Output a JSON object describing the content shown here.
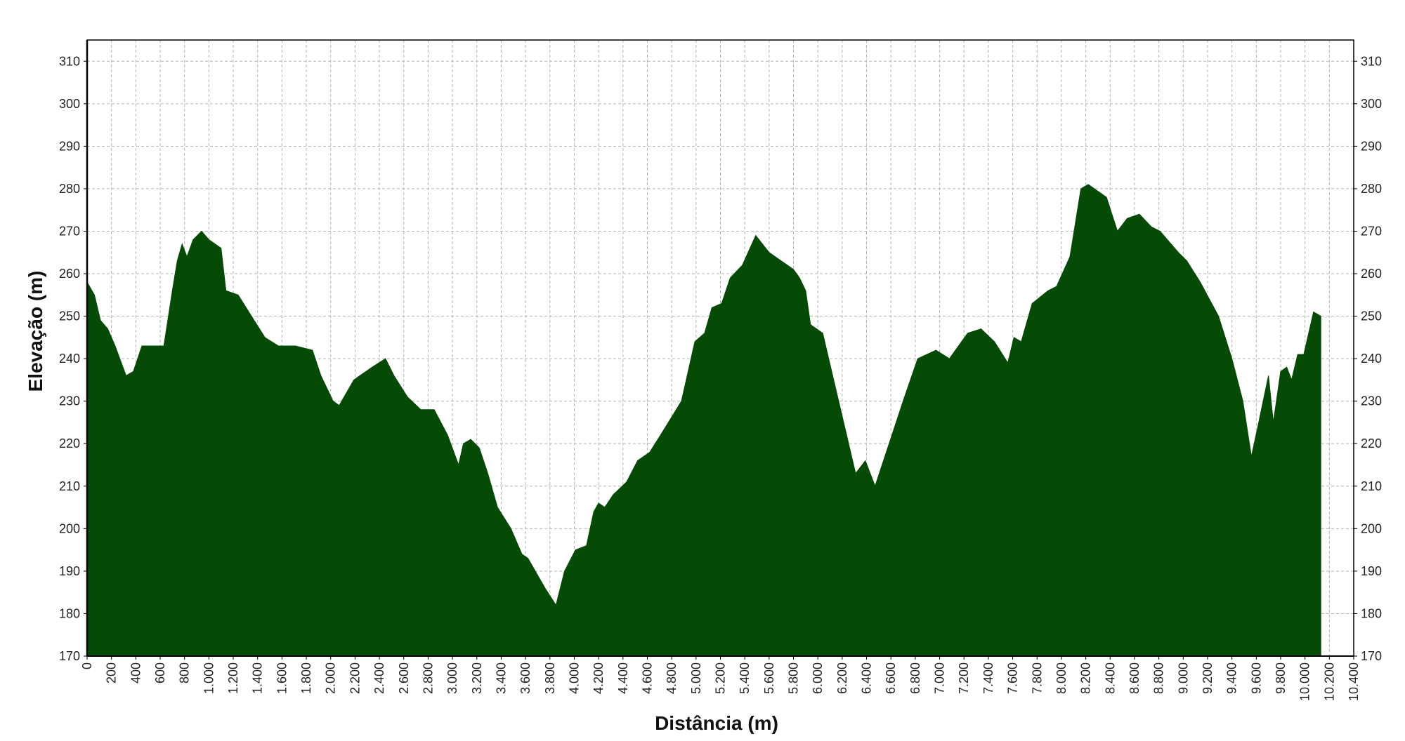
{
  "chart_data": {
    "type": "area",
    "x_label": "Distância (m)",
    "y_label": "Elevação (m)",
    "color": "#054a05",
    "grid": true,
    "xlim": [
      0,
      10400
    ],
    "ylim": [
      170,
      315
    ],
    "xticks": [
      0,
      200,
      400,
      600,
      800,
      {
        "value": 1000,
        "label": "1.000"
      },
      {
        "value": 1200,
        "label": "1.200"
      },
      {
        "value": 1400,
        "label": "1.400"
      },
      {
        "value": 1600,
        "label": "1.600"
      },
      {
        "value": 1800,
        "label": "1.800"
      },
      {
        "value": 2000,
        "label": "2.000"
      },
      {
        "value": 2200,
        "label": "2.200"
      },
      {
        "value": 2400,
        "label": "2.400"
      },
      {
        "value": 2600,
        "label": "2.600"
      },
      {
        "value": 2800,
        "label": "2.800"
      },
      {
        "value": 3000,
        "label": "3.000"
      },
      {
        "value": 3200,
        "label": "3.200"
      },
      {
        "value": 3400,
        "label": "3.400"
      },
      {
        "value": 3600,
        "label": "3.600"
      },
      {
        "value": 3800,
        "label": "3.800"
      },
      {
        "value": 4000,
        "label": "4.000"
      },
      {
        "value": 4200,
        "label": "4.200"
      },
      {
        "value": 4400,
        "label": "4.400"
      },
      {
        "value": 4600,
        "label": "4.600"
      },
      {
        "value": 4800,
        "label": "4.800"
      },
      {
        "value": 5000,
        "label": "5.000"
      },
      {
        "value": 5200,
        "label": "5.200"
      },
      {
        "value": 5400,
        "label": "5.400"
      },
      {
        "value": 5600,
        "label": "5.600"
      },
      {
        "value": 5800,
        "label": "5.800"
      },
      {
        "value": 6000,
        "label": "6.000"
      },
      {
        "value": 6200,
        "label": "6.200"
      },
      {
        "value": 6400,
        "label": "6.400"
      },
      {
        "value": 6600,
        "label": "6.600"
      },
      {
        "value": 6800,
        "label": "6.800"
      },
      {
        "value": 7000,
        "label": "7.000"
      },
      {
        "value": 7200,
        "label": "7.200"
      },
      {
        "value": 7400,
        "label": "7.400"
      },
      {
        "value": 7600,
        "label": "7.600"
      },
      {
        "value": 7800,
        "label": "7.800"
      },
      {
        "value": 8000,
        "label": "8.000"
      },
      {
        "value": 8200,
        "label": "8.200"
      },
      {
        "value": 8400,
        "label": "8.400"
      },
      {
        "value": 8600,
        "label": "8.600"
      },
      {
        "value": 8800,
        "label": "8.800"
      },
      {
        "value": 9000,
        "label": "9.000"
      },
      {
        "value": 9200,
        "label": "9.200"
      },
      {
        "value": 9400,
        "label": "9.400"
      },
      {
        "value": 9600,
        "label": "9.600"
      },
      {
        "value": 9800,
        "label": "9.800"
      },
      {
        "value": 10000,
        "label": "10.000"
      },
      {
        "value": 10200,
        "label": "10.200"
      },
      {
        "value": 10400,
        "label": "10.400"
      }
    ],
    "yticks": [
      170,
      180,
      190,
      200,
      210,
      220,
      230,
      240,
      250,
      260,
      270,
      280,
      290,
      300,
      310
    ],
    "x": [
      0,
      60,
      110,
      170,
      230,
      320,
      380,
      450,
      630,
      700,
      740,
      780,
      820,
      870,
      940,
      1000,
      1100,
      1140,
      1240,
      1350,
      1460,
      1570,
      1710,
      1850,
      1920,
      2020,
      2070,
      2190,
      2340,
      2450,
      2520,
      2630,
      2740,
      2850,
      2960,
      3050,
      3090,
      3150,
      3220,
      3290,
      3370,
      3480,
      3570,
      3620,
      3760,
      3850,
      3920,
      4010,
      4100,
      4160,
      4200,
      4250,
      4320,
      4430,
      4520,
      4620,
      4730,
      4880,
      4990,
      5070,
      5130,
      5210,
      5280,
      5380,
      5490,
      5600,
      5700,
      5800,
      5850,
      5900,
      5940,
      6040,
      6310,
      6390,
      6470,
      6700,
      6820,
      6970,
      7080,
      7230,
      7340,
      7450,
      7560,
      7610,
      7670,
      7760,
      7890,
      7960,
      8070,
      8160,
      8220,
      8370,
      8460,
      8540,
      8640,
      8740,
      8810,
      8960,
      9030,
      9140,
      9290,
      9400,
      9490,
      9560,
      9620,
      9700,
      9740,
      9800,
      9850,
      9890,
      9940,
      9990,
      10070,
      10130
    ],
    "values": [
      258,
      255,
      249,
      247,
      243,
      236,
      237,
      243,
      243,
      256,
      263,
      267,
      264,
      268,
      270,
      268,
      266,
      256,
      255,
      250,
      245,
      243,
      243,
      242,
      236,
      230,
      229,
      235,
      238,
      240,
      236,
      231,
      228,
      228,
      222,
      215,
      220,
      221,
      219,
      213,
      205,
      200,
      194,
      193,
      186,
      182,
      190,
      195,
      196,
      204,
      206,
      205,
      208,
      211,
      216,
      218,
      223,
      230,
      244,
      246,
      252,
      253,
      259,
      262,
      269,
      265,
      263,
      261,
      259,
      256,
      248,
      246,
      213,
      216,
      210,
      230,
      240,
      242,
      240,
      246,
      247,
      244,
      239,
      245,
      244,
      253,
      256,
      257,
      264,
      280,
      281,
      278,
      270,
      273,
      274,
      271,
      270,
      265,
      263,
      258,
      250,
      240,
      230,
      217,
      225,
      236,
      225,
      237,
      238,
      235,
      241,
      241,
      251,
      250
    ]
  }
}
